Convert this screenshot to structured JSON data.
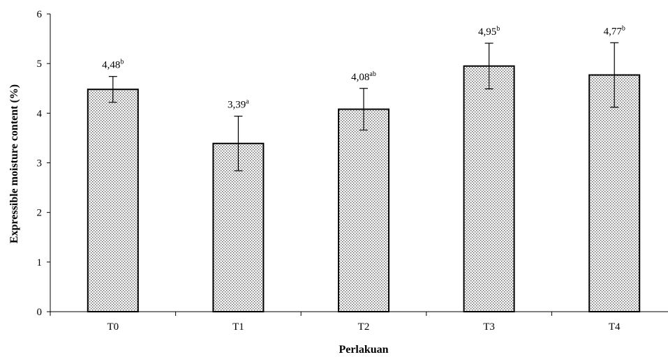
{
  "chart_data": {
    "type": "bar",
    "title": "",
    "xlabel": "Perlakuan",
    "ylabel": "Expressible moisture content (%)",
    "ylim": [
      0,
      6
    ],
    "yticks": [
      "0",
      "1",
      "2",
      "3",
      "4",
      "5",
      "6"
    ],
    "categories": [
      "T0",
      "T1",
      "T2",
      "T3",
      "T4"
    ],
    "values": [
      4.48,
      3.39,
      4.08,
      4.95,
      4.77
    ],
    "error_plus_minus": [
      0.26,
      0.55,
      0.42,
      0.46,
      0.65
    ],
    "data_labels": [
      "4,48",
      "3,39",
      "4,08",
      "4,95",
      "4,77"
    ],
    "significance_letters": [
      "b",
      "a",
      "ab",
      "b",
      "b"
    ],
    "bar_fill": "dotted pattern (light gray stipple)",
    "legend": "none",
    "grid": false
  }
}
